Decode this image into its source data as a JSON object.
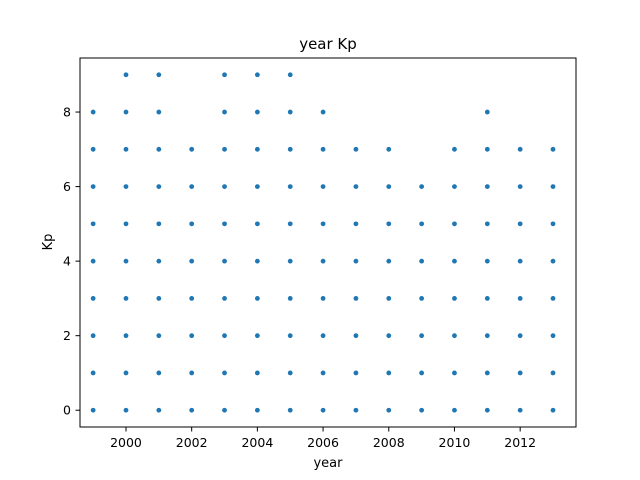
{
  "chart_data": {
    "type": "scatter",
    "title": "year Kp",
    "xlabel": "year",
    "ylabel": "Kp",
    "xlim": [
      1998.6,
      2013.7
    ],
    "ylim": [
      -0.45,
      9.45
    ],
    "xticks": [
      2000,
      2002,
      2004,
      2006,
      2008,
      2010,
      2012
    ],
    "yticks": [
      0,
      2,
      4,
      6,
      8
    ],
    "grid": false,
    "marker_color": "#1f77b4",
    "points": [
      {
        "year": 1999,
        "kp": [
          0,
          1,
          2,
          3,
          4,
          5,
          6,
          7,
          8
        ]
      },
      {
        "year": 2000,
        "kp": [
          0,
          1,
          2,
          3,
          4,
          5,
          6,
          7,
          8,
          9
        ]
      },
      {
        "year": 2001,
        "kp": [
          0,
          1,
          2,
          3,
          4,
          5,
          6,
          7,
          8,
          9
        ]
      },
      {
        "year": 2002,
        "kp": [
          0,
          1,
          2,
          3,
          4,
          5,
          6,
          7
        ]
      },
      {
        "year": 2003,
        "kp": [
          0,
          1,
          2,
          3,
          4,
          5,
          6,
          7,
          8,
          9
        ]
      },
      {
        "year": 2004,
        "kp": [
          0,
          1,
          2,
          3,
          4,
          5,
          6,
          7,
          8,
          9
        ]
      },
      {
        "year": 2005,
        "kp": [
          0,
          1,
          2,
          3,
          4,
          5,
          6,
          7,
          8,
          9
        ]
      },
      {
        "year": 2006,
        "kp": [
          0,
          1,
          2,
          3,
          4,
          5,
          6,
          7,
          8
        ]
      },
      {
        "year": 2007,
        "kp": [
          0,
          1,
          2,
          3,
          4,
          5,
          6,
          7
        ]
      },
      {
        "year": 2008,
        "kp": [
          0,
          1,
          2,
          3,
          4,
          5,
          6,
          7
        ]
      },
      {
        "year": 2009,
        "kp": [
          0,
          1,
          2,
          3,
          4,
          5,
          6
        ]
      },
      {
        "year": 2010,
        "kp": [
          0,
          1,
          2,
          3,
          4,
          5,
          6,
          7
        ]
      },
      {
        "year": 2011,
        "kp": [
          0,
          1,
          2,
          3,
          4,
          5,
          6,
          7,
          8
        ]
      },
      {
        "year": 2012,
        "kp": [
          0,
          1,
          2,
          3,
          4,
          5,
          6,
          7
        ]
      },
      {
        "year": 2013,
        "kp": [
          0,
          1,
          2,
          3,
          4,
          5,
          6,
          7
        ]
      }
    ]
  }
}
